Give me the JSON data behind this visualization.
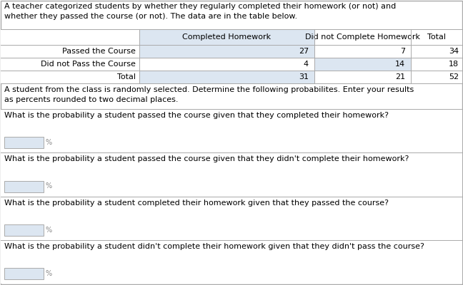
{
  "intro_text_line1": "A teacher categorized students by whether they regularly completed their homework (or not) and",
  "intro_text_line2": "whether they passed the course (or not). The data are in the table below.",
  "table": {
    "col_headers": [
      "",
      "Completed Homework",
      "Did not Complete Homework",
      "Total"
    ],
    "rows": [
      [
        "Passed the Course",
        "27",
        "7",
        "34"
      ],
      [
        "Did not Pass the Course",
        "4",
        "14",
        "18"
      ],
      [
        "Total",
        "31",
        "21",
        "52"
      ]
    ],
    "header_bg": "#dce6f1",
    "data_bg": "#dce6f1"
  },
  "instruction_line1": "A student from the class is randomly selected. Determine the following probabilites. Enter your results",
  "instruction_line2": "as percents rounded to two decimal places.",
  "questions": [
    "What is the probability a student passed the course given that they completed their homework?",
    "What is the probability a student passed the course given that they didn't complete their homework?",
    "What is the probability a student completed their homework given that they passed the course?",
    "What is the probability a student didn't complete their homework given that they didn't pass the course?"
  ],
  "input_box_color": "#dce6f1",
  "border_color": "#aaaaaa",
  "bg_color": "#ffffff",
  "text_color": "#000000",
  "font_size": 8.0
}
